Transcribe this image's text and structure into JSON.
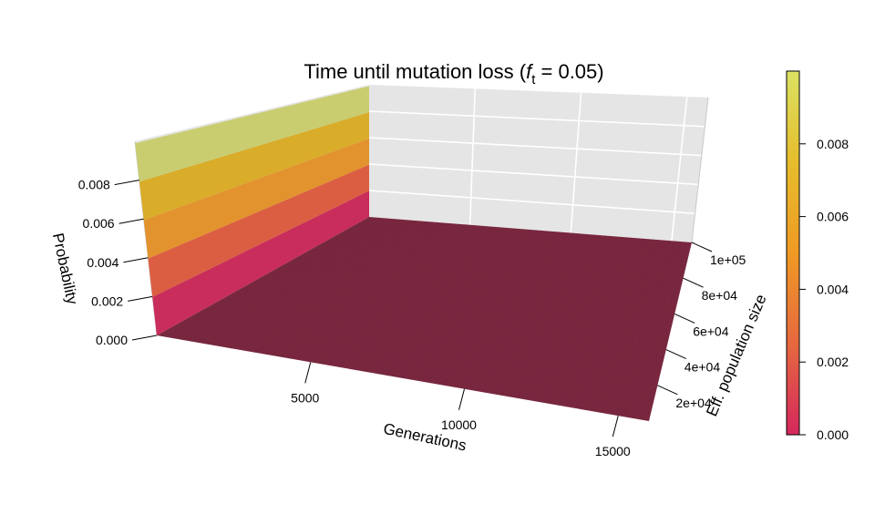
{
  "chart_data": {
    "type": "surface3d",
    "title": "Time until mutation loss (",
    "title_var": "f",
    "title_sub": "t",
    "title_rest": " = 0.05)",
    "xlabel": "Generations",
    "ylabel": "Eff. population size",
    "zlabel": "Probability",
    "x_ticks": [
      {
        "value": 5000,
        "label": "5000"
      },
      {
        "value": 10000,
        "label": "10000"
      },
      {
        "value": 15000,
        "label": "15000"
      }
    ],
    "y_ticks": [
      {
        "value": 20000,
        "label": "2e+04"
      },
      {
        "value": 40000,
        "label": "4e+04"
      },
      {
        "value": 60000,
        "label": "6e+04"
      },
      {
        "value": 80000,
        "label": "8e+04"
      },
      {
        "value": 100000,
        "label": "1e+05"
      }
    ],
    "z_ticks": [
      {
        "value": 0.0,
        "label": "0.000"
      },
      {
        "value": 0.002,
        "label": "0.002"
      },
      {
        "value": 0.004,
        "label": "0.004"
      },
      {
        "value": 0.006,
        "label": "0.006"
      },
      {
        "value": 0.008,
        "label": "0.008"
      }
    ],
    "xlim": [
      0,
      16000
    ],
    "ylim": [
      0,
      100000
    ],
    "zlim": [
      0,
      0.01
    ],
    "surface_edge_at_x0": [
      {
        "y": 0,
        "z": 0.0099
      },
      {
        "y": 100000,
        "z": 0.0099
      }
    ],
    "surface_elsewhere_z": 0.0,
    "colorbar": {
      "min": 0.0,
      "max": 0.01,
      "ticks": [
        {
          "value": 0.0,
          "label": "0.000"
        },
        {
          "value": 0.002,
          "label": "0.002"
        },
        {
          "value": 0.004,
          "label": "0.004"
        },
        {
          "value": 0.006,
          "label": "0.006"
        },
        {
          "value": 0.008,
          "label": "0.008"
        }
      ],
      "colors": [
        "#d5275d",
        "#e6683f",
        "#ef9a24",
        "#e6bd2c",
        "#dbe263"
      ]
    },
    "floor_color": "#78273f",
    "band_colors": [
      "#c92d5b",
      "#db5e43",
      "#e2932e",
      "#d9ac2a",
      "#c9cd70"
    ],
    "panel_color": "#e5e5e5",
    "grid_color": "#ffffff"
  }
}
